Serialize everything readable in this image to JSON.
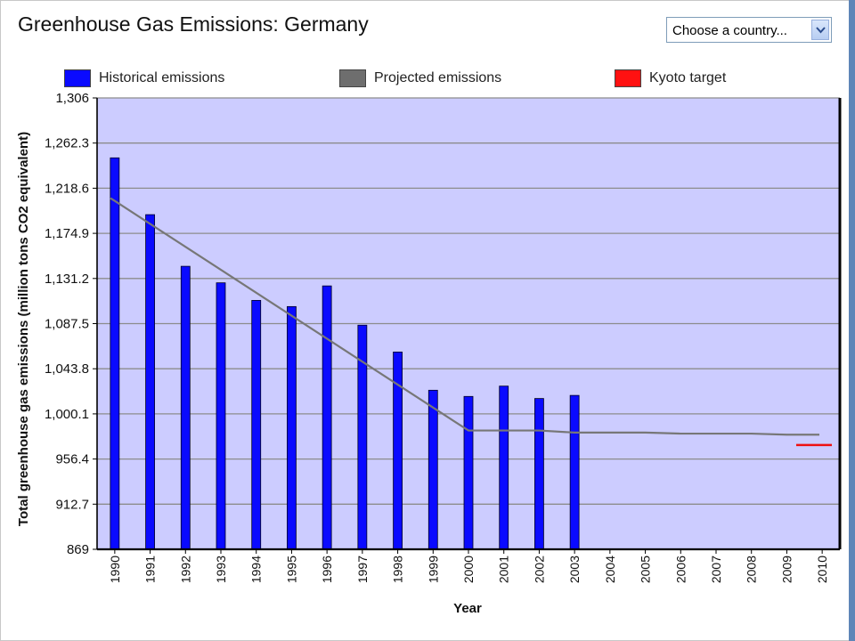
{
  "header": {
    "title": "Greenhouse Gas Emissions: Germany"
  },
  "country_select": {
    "value": "Choose a country..."
  },
  "legend": [
    {
      "label": "Historical emissions",
      "color": "#0a0aff"
    },
    {
      "label": "Projected emissions",
      "color": "#6e6e6e"
    },
    {
      "label": "Kyoto target",
      "color": "#ff1111"
    }
  ],
  "colors": {
    "plot_background": "#ccccff",
    "gridline": "#8c8c8c",
    "bar": "#0a0aff",
    "projection": "#777777",
    "kyoto": "#ee1111"
  },
  "chart_data": {
    "type": "bar",
    "title": "Greenhouse Gas Emissions: Germany",
    "xlabel": "Year",
    "ylabel": "Total greenhouse gas emissions (million tons CO2 equivalent)",
    "categories": [
      "1990",
      "1991",
      "1992",
      "1993",
      "1994",
      "1995",
      "1996",
      "1997",
      "1998",
      "1999",
      "2000",
      "2001",
      "2002",
      "2003",
      "2004",
      "2005",
      "2006",
      "2007",
      "2008",
      "2009",
      "2010"
    ],
    "yticks": [
      "869",
      "912.7",
      "956.4",
      "1,000.1",
      "1,043.8",
      "1,087.5",
      "1,131.2",
      "1,174.9",
      "1,218.6",
      "1,262.3",
      "1,306"
    ],
    "ylim": [
      869,
      1306
    ],
    "grid": true,
    "legend_position": "top",
    "series": [
      {
        "name": "Historical emissions",
        "type": "bar",
        "values": [
          1248,
          1193,
          1143,
          1127,
          1110,
          1104,
          1124,
          1086,
          1060,
          1023,
          1017,
          1027,
          1015,
          1018,
          null,
          null,
          null,
          null,
          null,
          null,
          null
        ]
      },
      {
        "name": "Projected emissions",
        "type": "line",
        "values": [
          1209,
          null,
          null,
          null,
          null,
          null,
          null,
          null,
          null,
          null,
          984,
          null,
          984,
          982,
          null,
          982,
          981,
          null,
          981,
          980,
          980
        ]
      },
      {
        "name": "Kyoto target",
        "type": "line",
        "values": [
          null,
          null,
          null,
          null,
          null,
          null,
          null,
          null,
          null,
          null,
          null,
          null,
          null,
          null,
          null,
          null,
          null,
          null,
          null,
          null,
          970
        ]
      }
    ]
  }
}
